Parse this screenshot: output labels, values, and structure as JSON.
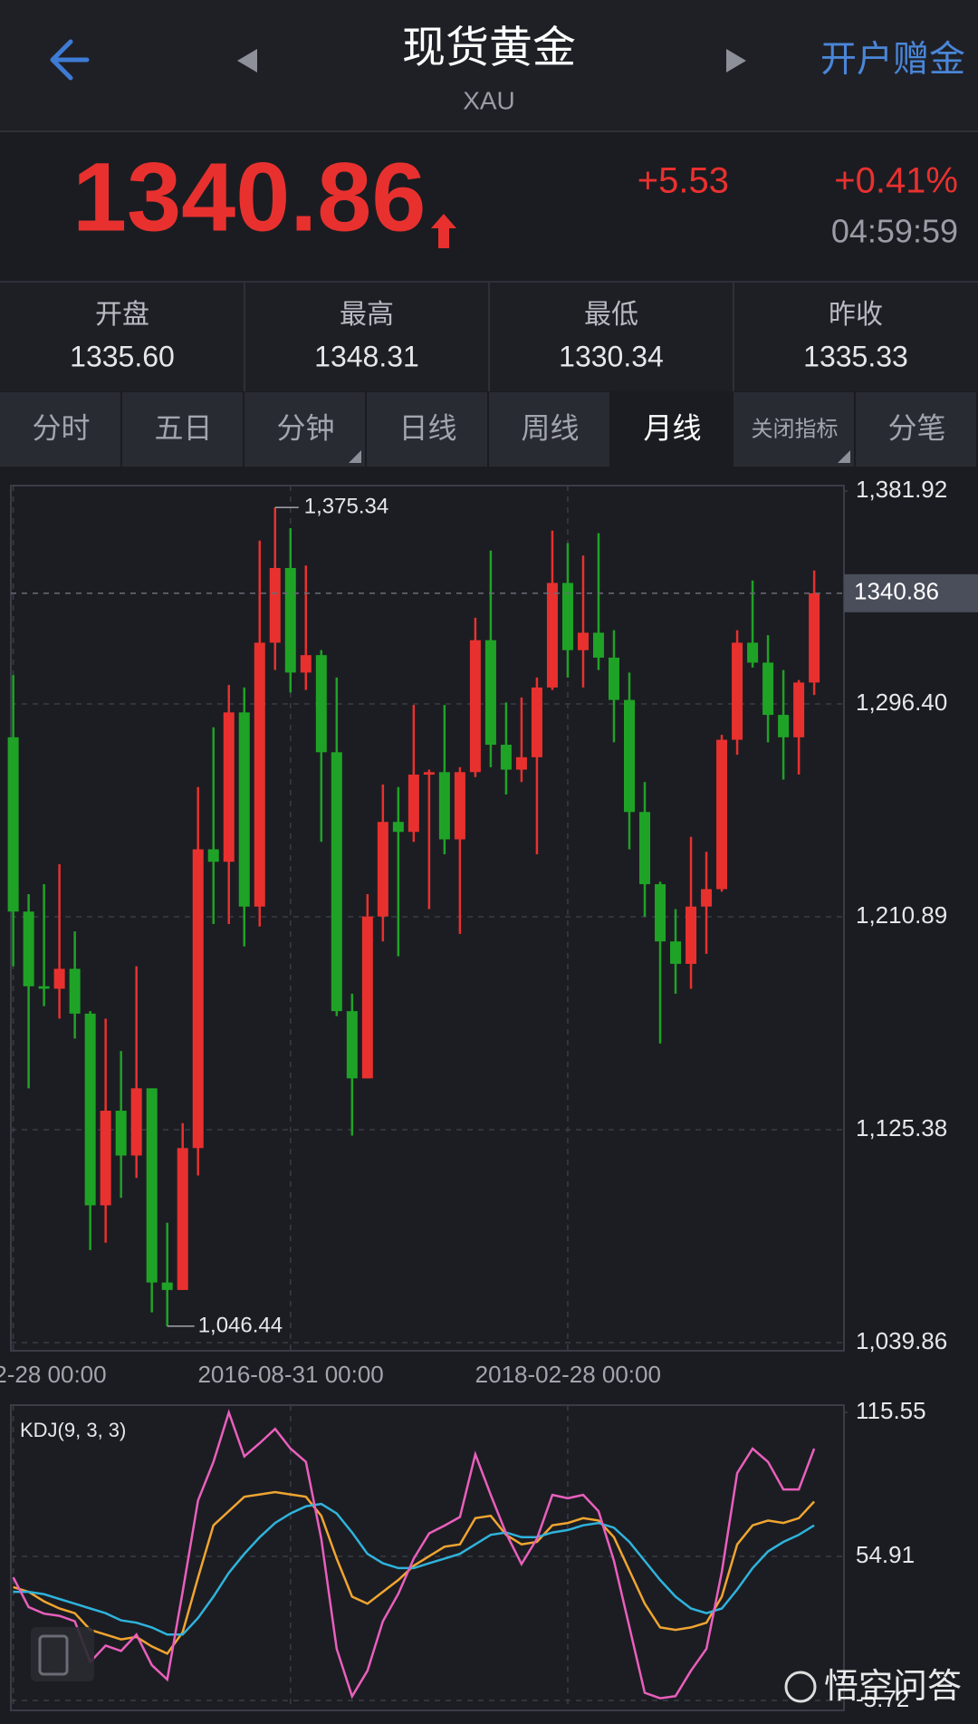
{
  "header": {
    "title": "现货黄金",
    "subtitle": "XAU",
    "action": "开户赠金"
  },
  "quote": {
    "change": "+5.53",
    "change_pct": "+0.41%",
    "time": "04:59:59"
  },
  "stats": [
    {
      "label": "开盘",
      "value": "1335.60"
    },
    {
      "label": "最高",
      "value": "1348.31"
    },
    {
      "label": "最低",
      "value": "1330.34"
    },
    {
      "label": "昨收",
      "value": "1335.33"
    }
  ],
  "tabs": [
    "分时",
    "五日",
    "分钟",
    "日线",
    "周线",
    "月线",
    "关闭指标",
    "分笔"
  ],
  "active_tab": 5,
  "watermark": "悟空问答",
  "chart_data": [
    {
      "type": "candlestick",
      "categories": [
        "2-28 00:00",
        null,
        null,
        null,
        null,
        null,
        null,
        null,
        null,
        null,
        null,
        null,
        null,
        null,
        null,
        null,
        null,
        null,
        "2016-08-31 00:00",
        null,
        null,
        null,
        null,
        null,
        null,
        null,
        null,
        null,
        null,
        null,
        null,
        null,
        null,
        null,
        null,
        null,
        "2018-02-28 00:00",
        null,
        null,
        null,
        null,
        null,
        null,
        null,
        null,
        null,
        null,
        null,
        null,
        null,
        null,
        null,
        null
      ],
      "open": [
        1283,
        1213,
        1183,
        1182,
        1190,
        1172,
        1095,
        1133,
        1115,
        1142,
        1064,
        1061,
        1118,
        1238,
        1233,
        1293,
        1215,
        1321,
        1351,
        1309,
        1316,
        1277,
        1173,
        1146,
        1211,
        1249,
        1245,
        1268,
        1269,
        1242,
        1269,
        1322,
        1280,
        1270,
        1275,
        1303,
        1345,
        1318,
        1325,
        1315,
        1298,
        1253,
        1224,
        1201,
        1192,
        1215,
        1222,
        1282,
        1321,
        1313,
        1292,
        1283,
        1305
      ],
      "high": [
        1308,
        1220,
        1224,
        1232,
        1205,
        1173,
        1170,
        1157,
        1191,
        1142,
        1088,
        1128,
        1263,
        1287,
        1304,
        1303,
        1362,
        1375.34,
        1367,
        1352,
        1318,
        1307,
        1180,
        1220,
        1264,
        1263,
        1296,
        1270,
        1296,
        1271,
        1331,
        1358,
        1297,
        1299,
        1307,
        1366,
        1361,
        1356,
        1365,
        1326,
        1309,
        1265,
        1225,
        1214,
        1243,
        1237,
        1284,
        1326,
        1346,
        1324,
        1310,
        1306,
        1350
      ],
      "low": [
        1191,
        1142,
        1175,
        1170,
        1162,
        1077,
        1080,
        1098,
        1106,
        1052,
        1046.44,
        1061,
        1107,
        1208,
        1208,
        1199,
        1207,
        1310,
        1301,
        1302,
        1241,
        1171,
        1123,
        1146,
        1201,
        1195,
        1241,
        1214,
        1236,
        1204,
        1267,
        1271,
        1260,
        1265,
        1236,
        1302,
        1307,
        1303,
        1310,
        1281,
        1238,
        1211,
        1160,
        1180,
        1182,
        1196,
        1221,
        1276,
        1311,
        1281,
        1266,
        1268,
        1300
      ],
      "close": [
        1213,
        1183,
        1182,
        1190,
        1172,
        1095,
        1133,
        1115,
        1142,
        1064,
        1061,
        1118,
        1238,
        1233,
        1293,
        1215,
        1321,
        1351,
        1309,
        1316,
        1277,
        1173,
        1146,
        1211,
        1249,
        1245,
        1268,
        1269,
        1242,
        1269,
        1322,
        1280,
        1270,
        1275,
        1303,
        1345,
        1318,
        1325,
        1315,
        1298,
        1253,
        1224,
        1201,
        1192,
        1215,
        1222,
        1282,
        1321,
        1313,
        1292,
        1283,
        1305,
        1340.86
      ],
      "up_color": "#e8312f",
      "down_color": "#1fa327",
      "ylim": [
        1039.86,
        1381.92
      ],
      "yticks": [
        {
          "value": 1381.92,
          "label": "1,381.92"
        },
        {
          "value": 1296.4,
          "label": "1,296.40"
        },
        {
          "value": 1210.89,
          "label": "1,210.89"
        },
        {
          "value": 1125.38,
          "label": "1,125.38"
        },
        {
          "value": 1039.86,
          "label": "1,039.86"
        }
      ],
      "last_price": 1340.86,
      "annotations": {
        "max": {
          "value": 1375.34,
          "label": "1,375.34"
        },
        "min": {
          "value": 1046.44,
          "label": "1,046.44"
        }
      },
      "grid": true
    },
    {
      "type": "line",
      "title": "KDJ(9, 3, 3)",
      "series": [
        {
          "color": "#f0a531",
          "values": [
            42,
            40,
            36,
            33,
            31,
            24,
            22,
            20,
            21,
            17,
            14,
            23,
            46,
            68,
            74,
            80,
            81,
            82,
            81,
            80,
            72,
            54,
            38,
            35,
            40,
            45,
            51,
            55,
            59,
            60,
            71,
            72,
            64,
            60,
            61,
            68,
            69,
            71,
            70,
            63,
            49,
            35,
            25,
            24,
            25,
            27,
            38,
            60,
            68,
            70,
            69,
            71,
            78
          ]
        },
        {
          "color": "#2fb3dc",
          "values": [
            40,
            40,
            39,
            37,
            35,
            33,
            31,
            28,
            27,
            25,
            22,
            22,
            29,
            38,
            48,
            56,
            63,
            69,
            73,
            76,
            77,
            73,
            65,
            56,
            52,
            50,
            50,
            52,
            54,
            56,
            60,
            64,
            65,
            63,
            63,
            65,
            66,
            68,
            69,
            67,
            61,
            53,
            45,
            38,
            33,
            31,
            33,
            41,
            50,
            57,
            61,
            64,
            68
          ]
        },
        {
          "color": "#e95fbd",
          "values": [
            46.1,
            33.6,
            30.8,
            29.9,
            27.6,
            10.5,
            17.4,
            15.1,
            22,
            9.1,
            3.1,
            40,
            78.5,
            94.7,
            115.5,
            97,
            102.6,
            108.6,
            100.3,
            94.7,
            62.3,
            16,
            -4,
            6.8,
            27.6,
            39.2,
            54,
            64.6,
            67.9,
            71.5,
            97.9,
            80.8,
            64.6,
            51.7,
            62.3,
            80.8,
            79.4,
            80.8,
            73.9,
            53,
            25.3,
            -2.5,
            -4.8,
            -3.9,
            6.8,
            16,
            48.4,
            90,
            100.3,
            94.7,
            83.1,
            83.1,
            100.3
          ]
        }
      ],
      "ylim": [
        -5.72,
        115.55
      ],
      "yticks": [
        115.55,
        54.91,
        -5.72
      ],
      "grid": true
    }
  ]
}
